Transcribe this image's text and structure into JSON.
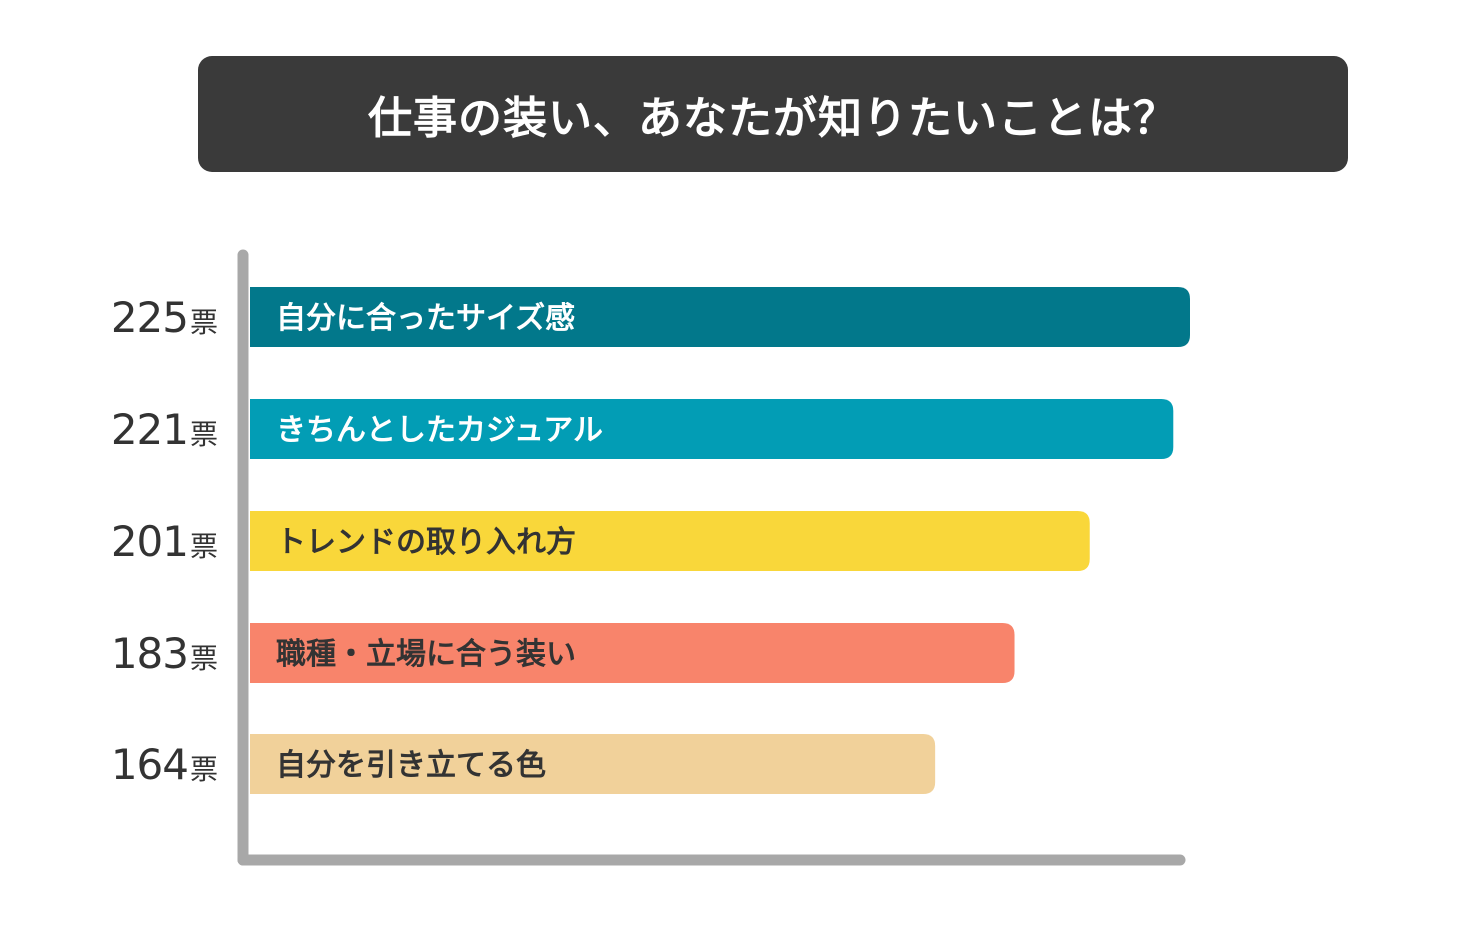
{
  "chart_data": {
    "type": "bar",
    "orientation": "horizontal",
    "title": "仕事の装い、あなたが知りたいことは？",
    "unit": "票",
    "categories": [
      "自分に合ったサイズ感",
      "きちんとしたカジュアル",
      "トレンドの取り入れ方",
      "職種・立場に合う装い",
      "自分を引き立てる色"
    ],
    "values": [
      225,
      221,
      201,
      183,
      164
    ],
    "colors": [
      "#02788b",
      "#029db5",
      "#f9d73a",
      "#f8846b",
      "#f1d19a"
    ],
    "label_colors": [
      "#ffffff",
      "#ffffff",
      "#333333",
      "#333333",
      "#333333"
    ],
    "xlim": [
      0,
      240
    ],
    "legend": "none",
    "grid": false
  }
}
